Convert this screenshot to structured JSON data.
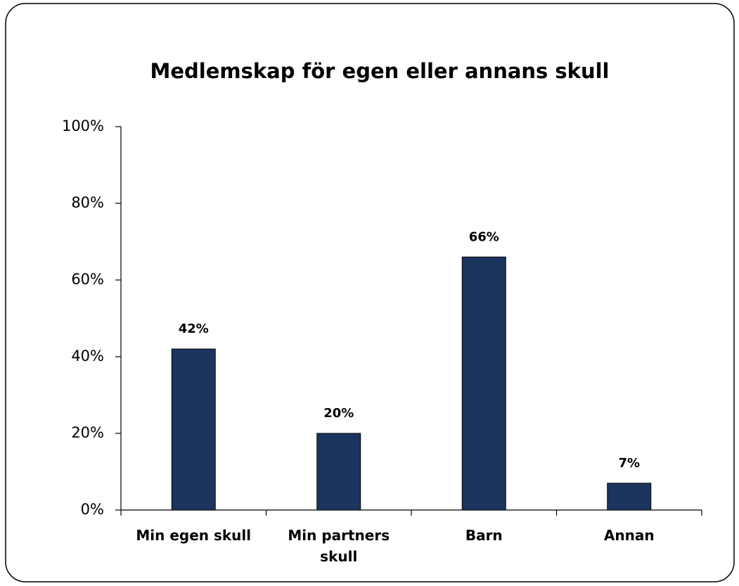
{
  "chart_data": {
    "type": "bar",
    "title": "Medlemskap för egen eller annans skull",
    "categories": [
      "Min egen skull",
      "Min partners skull",
      "Barn",
      "Annan"
    ],
    "values": [
      42,
      20,
      66,
      7
    ],
    "value_labels": [
      "42%",
      "20%",
      "66%",
      "7%"
    ],
    "color": "#1c355e",
    "ylim": [
      0,
      100
    ],
    "yticks": [
      {
        "value": 0,
        "label": "0%"
      },
      {
        "value": 20,
        "label": "20%"
      },
      {
        "value": 40,
        "label": "40%"
      },
      {
        "value": 60,
        "label": "60%"
      },
      {
        "value": 80,
        "label": "80%"
      },
      {
        "value": 100,
        "label": "100%"
      }
    ],
    "grid": false
  }
}
